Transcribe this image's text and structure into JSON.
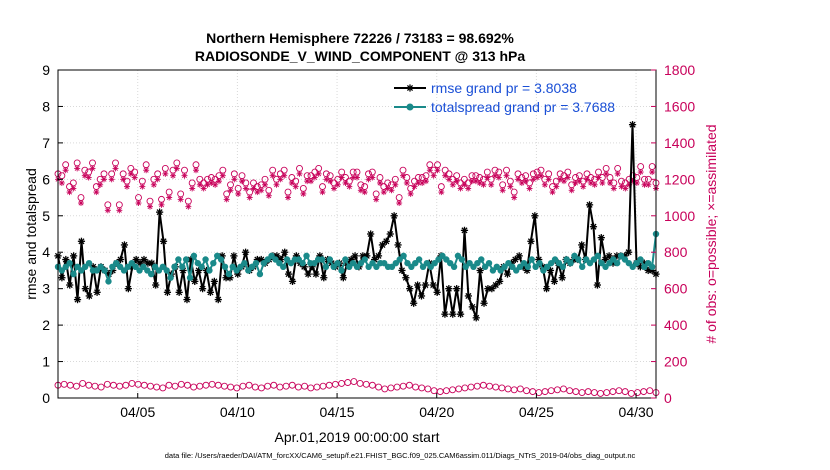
{
  "chart_data": {
    "type": "line",
    "title": "Northern Hemisphere 72226 / 73183 = 98.692%",
    "subtitle": "RADIOSONDE_V_WIND_COMPONENT @ 313 hPa",
    "xlabel": "Apr.01,2019 00:00:00 start",
    "ylabel_left": "rmse and totalspread",
    "ylabel_right": "# of obs: o=possible; ×=assimilated",
    "footer": "data file: /Users/raeder/DAI/ATM_forcXX/CAM6_setup/f.e21.FHIST_BGC.f09_025.CAM6assim.011/Diags_NTrS_2019-04/obs_diag_output.nc",
    "xlim": [
      1,
      31
    ],
    "ylim_left": [
      0,
      9
    ],
    "ylim_right": [
      0,
      1800
    ],
    "x_ticks": [
      {
        "value": 5,
        "label": "04/05"
      },
      {
        "value": 10,
        "label": "04/10"
      },
      {
        "value": 15,
        "label": "04/15"
      },
      {
        "value": 20,
        "label": "04/20"
      },
      {
        "value": 25,
        "label": "04/25"
      },
      {
        "value": 30,
        "label": "04/30"
      }
    ],
    "y_ticks_left": [
      "0",
      "1",
      "2",
      "3",
      "4",
      "5",
      "6",
      "7",
      "8",
      "9"
    ],
    "y_ticks_right": [
      "0",
      "200",
      "400",
      "600",
      "800",
      "1000",
      "1200",
      "1400",
      "1600",
      "1800"
    ],
    "legend": [
      {
        "label": "rmse grand pr = 3.8038",
        "color": "#000000"
      },
      {
        "label": "totalspread grand pr = 3.7688",
        "color": "#1a8a8a"
      }
    ],
    "series": [
      {
        "name": "rmse",
        "axis": "left",
        "color": "#000000",
        "marker": "star",
        "values": [
          3.9,
          3.3,
          3.8,
          3.1,
          3.9,
          2.7,
          4.3,
          3.0,
          2.8,
          3.6,
          2.9,
          3.6,
          3.5,
          3.4,
          3.5,
          3.7,
          3.8,
          4.2,
          3.0,
          3.6,
          3.8,
          3.7,
          3.8,
          3.7,
          3.7,
          3.1,
          5.1,
          4.3,
          2.9,
          3.4,
          3.6,
          2.9,
          3.5,
          2.7,
          3.8,
          3.2,
          3.5,
          3.0,
          3.5,
          2.9,
          3.2,
          2.7,
          3.9,
          3.3,
          3.3,
          3.9,
          3.4,
          3.6,
          4.0,
          3.5,
          3.6,
          3.8,
          3.8,
          3.7,
          3.8,
          3.9,
          3.9,
          3.8,
          4.0,
          3.4,
          3.2,
          3.9,
          3.7,
          3.6,
          3.4,
          3.6,
          3.4,
          3.9,
          3.3,
          3.8,
          3.7,
          3.6,
          3.7,
          3.3,
          3.7,
          3.8,
          3.9,
          3.6,
          3.9,
          3.9,
          4.5,
          3.8,
          3.9,
          4.2,
          4.3,
          4.5,
          5.0,
          4.2,
          3.5,
          3.3,
          3.0,
          2.6,
          3.1,
          2.8,
          3.1,
          3.7,
          3.1,
          2.9,
          3.9,
          2.3,
          3.0,
          2.3,
          3.0,
          2.3,
          4.6,
          2.8,
          2.5,
          2.2,
          3.5,
          2.6,
          3.0,
          3.0,
          3.1,
          3.2,
          3.6,
          3.4,
          3.7,
          3.8,
          3.9,
          3.6,
          3.5,
          4.3,
          5.0,
          3.8,
          3.6,
          3.0,
          3.5,
          3.2,
          3.7,
          3.3,
          3.8,
          3.7,
          3.8,
          3.8,
          4.2,
          3.8,
          5.3,
          4.7,
          3.1,
          4.4,
          3.8,
          3.9,
          3.7,
          3.9,
          3.9,
          3.9,
          4.0,
          7.5,
          3.7,
          3.6,
          3.7,
          3.5,
          3.5,
          3.4
        ]
      },
      {
        "name": "totalspread",
        "axis": "left",
        "color": "#1a8a8a",
        "marker": "circle",
        "values": [
          3.6,
          3.5,
          3.6,
          3.7,
          3.4,
          3.6,
          3.5,
          3.6,
          3.7,
          3.5,
          3.5,
          3.6,
          3.5,
          3.2,
          3.6,
          3.7,
          3.6,
          3.5,
          3.6,
          3.7,
          3.6,
          3.5,
          3.6,
          3.5,
          3.4,
          3.6,
          3.5,
          3.6,
          3.5,
          3.3,
          3.6,
          3.8,
          3.6,
          3.8,
          3.3,
          3.9,
          3.7,
          3.6,
          3.8,
          3.5,
          3.7,
          3.9,
          3.8,
          3.6,
          3.4,
          3.6,
          3.5,
          3.6,
          3.7,
          3.5,
          3.6,
          3.7,
          3.4,
          3.7,
          3.8,
          3.9,
          3.8,
          3.7,
          3.6,
          3.8,
          3.7,
          3.8,
          3.8,
          3.7,
          3.9,
          3.7,
          3.7,
          3.8,
          3.8,
          3.6,
          3.8,
          3.6,
          3.7,
          3.5,
          3.8,
          3.6,
          3.7,
          3.6,
          3.7,
          3.8,
          3.6,
          3.7,
          3.6,
          3.7,
          3.7,
          3.6,
          3.6,
          3.7,
          3.8,
          3.9,
          3.7,
          3.6,
          3.7,
          3.8,
          3.6,
          3.7,
          3.6,
          3.7,
          3.8,
          3.9,
          3.8,
          3.7,
          3.6,
          3.9,
          3.8,
          3.6,
          3.7,
          3.6,
          3.7,
          3.8,
          3.6,
          3.7,
          3.5,
          3.6,
          3.5,
          3.6,
          3.7,
          3.6,
          3.5,
          3.6,
          3.7,
          3.6,
          3.8,
          3.6,
          3.7,
          3.5,
          3.6,
          3.7,
          3.8,
          3.7,
          3.6,
          3.8,
          3.7,
          3.9,
          3.8,
          3.6,
          3.8,
          3.7,
          3.8,
          3.9,
          3.7,
          3.6,
          3.7,
          3.8,
          3.7,
          3.9,
          3.8,
          3.7,
          3.6,
          3.7,
          3.8,
          3.6,
          3.7,
          3.6,
          4.5
        ]
      },
      {
        "name": "obs possible",
        "axis": "right",
        "color": "#c8005a",
        "marker": "open-circle",
        "values": [
          1230,
          1220,
          1280,
          1160,
          1180,
          1290,
          1100,
          1250,
          1240,
          1290,
          1160,
          1200,
          1230,
          1060,
          1230,
          1290,
          1060,
          1230,
          1190,
          1260,
          1240,
          1100,
          1190,
          1280,
          1080,
          1200,
          1230,
          1090,
          1260,
          1130,
          1250,
          1290,
          1120,
          1250,
          1080,
          1180,
          1280,
          1200,
          1180,
          1200,
          1210,
          1200,
          1220,
          1250,
          1120,
          1170,
          1230,
          1150,
          1220,
          1180,
          1130,
          1180,
          1160,
          1170,
          1200,
          1140,
          1250,
          1200,
          1230,
          1250,
          1130,
          1210,
          1190,
          1260,
          1150,
          1220,
          1220,
          1240,
          1260,
          1160,
          1230,
          1220,
          1180,
          1200,
          1240,
          1210,
          1190,
          1240,
          1240,
          1170,
          1160,
          1230,
          1240,
          1120,
          1210,
          1160,
          1180,
          1170,
          1200,
          1100,
          1250,
          1210,
          1150,
          1190,
          1210,
          1210,
          1220,
          1280,
          1250,
          1280,
          1160,
          1250,
          1230,
          1200,
          1220,
          1180,
          1200,
          1180,
          1220,
          1220,
          1210,
          1200,
          1240,
          1200,
          1250,
          1240,
          1170,
          1250,
          1190,
          1130,
          1230,
          1210,
          1220,
          1180,
          1230,
          1240,
          1250,
          1200,
          1230,
          1160,
          1190,
          1230,
          1220,
          1240,
          1170,
          1210,
          1220,
          1190,
          1230,
          1210,
          1200,
          1240,
          1210,
          1260,
          1210,
          1180,
          1260,
          1190,
          1180,
          1200,
          1220,
          1210,
          1270,
          1200,
          1200,
          1270,
          1180
        ]
      },
      {
        "name": "obs assimilated",
        "axis": "right",
        "color": "#c8005a",
        "marker": "star",
        "values": [
          1200,
          1180,
          1250,
          1130,
          1150,
          1260,
          1070,
          1220,
          1210,
          1260,
          1130,
          1170,
          1200,
          1030,
          1200,
          1260,
          1030,
          1200,
          1160,
          1230,
          1210,
          1070,
          1160,
          1250,
          1050,
          1170,
          1200,
          1060,
          1230,
          1100,
          1220,
          1260,
          1090,
          1220,
          1050,
          1150,
          1250,
          1170,
          1150,
          1170,
          1180,
          1170,
          1190,
          1220,
          1090,
          1140,
          1200,
          1120,
          1190,
          1150,
          1100,
          1150,
          1130,
          1140,
          1170,
          1110,
          1220,
          1170,
          1200,
          1220,
          1100,
          1180,
          1160,
          1230,
          1120,
          1190,
          1190,
          1210,
          1230,
          1130,
          1200,
          1190,
          1150,
          1170,
          1210,
          1180,
          1160,
          1210,
          1210,
          1140,
          1130,
          1200,
          1210,
          1090,
          1180,
          1130,
          1150,
          1140,
          1170,
          1070,
          1220,
          1180,
          1120,
          1160,
          1180,
          1180,
          1190,
          1250,
          1220,
          1250,
          1130,
          1220,
          1200,
          1170,
          1190,
          1150,
          1170,
          1150,
          1190,
          1190,
          1180,
          1170,
          1210,
          1170,
          1220,
          1210,
          1140,
          1220,
          1160,
          1100,
          1200,
          1180,
          1190,
          1150,
          1200,
          1210,
          1220,
          1170,
          1200,
          1130,
          1160,
          1200,
          1190,
          1210,
          1140,
          1180,
          1190,
          1160,
          1200,
          1180,
          1170,
          1210,
          1180,
          1230,
          1180,
          1150,
          1230,
          1160,
          1150,
          1170,
          1190,
          1180,
          1240,
          1170,
          1170,
          1240,
          1150
        ]
      },
      {
        "name": "obs possible (lower)",
        "axis": "right",
        "color": "#c8005a",
        "marker": "open-circle",
        "values": [
          70,
          75,
          70,
          65,
          80,
          70,
          65,
          60,
          75,
          70,
          65,
          70,
          80,
          75,
          70,
          65,
          60,
          55,
          70,
          65,
          75,
          70,
          60,
          65,
          70,
          75,
          70,
          65,
          60,
          55,
          65,
          70,
          60,
          55,
          65,
          70,
          60,
          65,
          70,
          60,
          65,
          55,
          60,
          65,
          70,
          75,
          80,
          85,
          90,
          80,
          75,
          70,
          60,
          50,
          55,
          60,
          65,
          70,
          60,
          55,
          50,
          40,
          35,
          40,
          45,
          50,
          55,
          60,
          65,
          70,
          65,
          60,
          55,
          50,
          45,
          50,
          40,
          35,
          30,
          35,
          40,
          45,
          50,
          40,
          35,
          30,
          35,
          30,
          25,
          30,
          35,
          40,
          35,
          25,
          30,
          35,
          40,
          30
        ]
      }
    ]
  }
}
